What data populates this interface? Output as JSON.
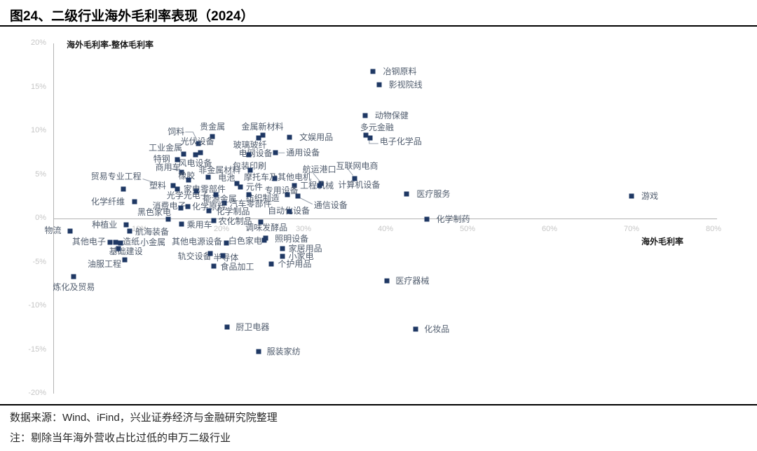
{
  "title": "图24、二级行业海外毛利率表现（2024）",
  "source": "数据来源：Wind、iFind，兴业证券经济与金融研究院整理",
  "note": "注：剔除当年海外营收占比过低的申万二级行业",
  "chart_data": {
    "type": "scatter",
    "title": "海外毛利率-整体毛利率",
    "xlabel": "海外毛利率",
    "ylabel": "海外毛利率-整体毛利率",
    "xlim": [
      0,
      80
    ],
    "ylim": [
      -20,
      20
    ],
    "x_ticks": [
      10,
      20,
      30,
      40,
      50,
      60,
      70,
      80
    ],
    "y_ticks": [
      20,
      15,
      10,
      5,
      0,
      -5,
      -10,
      -15,
      -20
    ],
    "tick_suffix": "%",
    "grid": false,
    "legend": "none",
    "marker_color": "#1F3864",
    "label_color": "#515d6e",
    "tick_color": "#c6c6c6",
    "axis_color": "#b3b3b3",
    "points": [
      {
        "name": "冶钢原料",
        "x": 38.5,
        "y": 16.8,
        "lx": 14,
        "ly": 0,
        "a": "s"
      },
      {
        "name": "影视院线",
        "x": 39.2,
        "y": 15.3,
        "lx": 14,
        "ly": 0,
        "a": "s"
      },
      {
        "name": "动物保健",
        "x": 37.5,
        "y": 11.8,
        "lx": 14,
        "ly": 0,
        "a": "s"
      },
      {
        "name": "多元金融",
        "x": 37.6,
        "y": 9.5,
        "lx": -8,
        "ly": -11,
        "a": "s"
      },
      {
        "name": "电子化学品",
        "x": 38.1,
        "y": 9.2,
        "lx": 14,
        "ly": 5,
        "a": "s",
        "c": [
          -1,
          1,
          -1,
          8,
          12,
          8
        ]
      },
      {
        "name": "贵金属",
        "x": 18.9,
        "y": 9.4,
        "lx": -18,
        "ly": -14,
        "a": "s"
      },
      {
        "name": "金属新材料",
        "x": 25.0,
        "y": 9.5,
        "lx": -30,
        "ly": -12,
        "a": "s"
      },
      {
        "name": "玻璃玻纤",
        "x": 24.5,
        "y": 9.2,
        "lx": -36,
        "ly": 10,
        "a": "s"
      },
      {
        "name": "文娱用品",
        "x": 28.3,
        "y": 9.3,
        "lx": 14,
        "ly": 0,
        "a": "s"
      },
      {
        "name": "饲料",
        "x": 17.2,
        "y": 8.6,
        "lx": -44,
        "ly": -17,
        "a": "s",
        "c": [
          -3,
          -6,
          -8,
          -16,
          -19,
          -16
        ]
      },
      {
        "name": "光伏设备",
        "x": 17.4,
        "y": 7.5,
        "lx": -28,
        "ly": -16,
        "a": "s"
      },
      {
        "name": "工业金属",
        "x": 15.4,
        "y": 7.4,
        "lx": -50,
        "ly": -9,
        "a": "s"
      },
      {
        "name": "特钢",
        "x": 14.6,
        "y": 6.7,
        "lx": -10,
        "ly": -1,
        "a": "e"
      },
      {
        "name": "风电设备",
        "x": 16.8,
        "y": 7.3,
        "lx": -24,
        "ly": 12,
        "a": "s"
      },
      {
        "name": "电网设备",
        "x": 23.3,
        "y": 7.3,
        "lx": -14,
        "ly": -2,
        "a": "s"
      },
      {
        "name": "通用设备",
        "x": 26.6,
        "y": 7.5,
        "lx": 15,
        "ly": 0,
        "a": "s",
        "c": [
          4,
          0,
          13,
          0
        ]
      },
      {
        "name": "包装印刷",
        "x": 23.5,
        "y": 5.5,
        "lx": -25,
        "ly": -6,
        "a": "s"
      },
      {
        "name": "航运港口",
        "x": 32.1,
        "y": 4.0,
        "lx": -26,
        "ly": -20,
        "a": "s",
        "c": [
          -2,
          -4,
          -11,
          -15
        ]
      },
      {
        "name": "互联网电商",
        "x": 36.2,
        "y": 4.6,
        "lx": -26,
        "ly": -18,
        "a": "s",
        "c": [
          -2,
          -4,
          -9,
          -13
        ]
      },
      {
        "name": "工程机械",
        "x": 28.9,
        "y": 3.8,
        "lx": 8,
        "ly": 0,
        "a": "s"
      },
      {
        "name": "计算机设备",
        "x": 32.0,
        "y": 3.8,
        "lx": 26,
        "ly": -1,
        "a": "s"
      },
      {
        "name": "医疗服务",
        "x": 42.6,
        "y": 2.8,
        "lx": 14,
        "ly": 0,
        "a": "s"
      },
      {
        "name": "游戏",
        "x": 70.0,
        "y": 2.6,
        "lx": 14,
        "ly": 0,
        "a": "s"
      },
      {
        "name": "化学制药",
        "x": 45.0,
        "y": -0.1,
        "lx": 14,
        "ly": 0,
        "a": "s"
      },
      {
        "name": "商用车",
        "x": 15.1,
        "y": 5.3,
        "lx": -37,
        "ly": -7,
        "a": "s",
        "c": [
          -4,
          -2,
          -15,
          -5
        ]
      },
      {
        "name": "非金属材料",
        "x": 18.4,
        "y": 4.7,
        "lx": -14,
        "ly": -10,
        "a": "s"
      },
      {
        "name": "橡胶",
        "x": 16.0,
        "y": 4.4,
        "lx": -15,
        "ly": -6,
        "a": "s"
      },
      {
        "name": "电池",
        "x": 21.9,
        "y": 4.0,
        "lx": -27,
        "ly": -8,
        "a": "s"
      },
      {
        "name": "摩托车及其他电机",
        "x": 26.5,
        "y": 4.6,
        "lx": -44,
        "ly": -2,
        "a": "s"
      },
      {
        "name": "贸易专业工程",
        "x": 8.0,
        "y": 3.4,
        "lx": -46,
        "ly": -18,
        "a": "s",
        "c": [
          28,
          -14,
          44,
          -9
        ]
      },
      {
        "name": "塑料",
        "x": 14.1,
        "y": 3.8,
        "lx": -10,
        "ly": 0,
        "a": "e"
      },
      {
        "name": "家电零部件",
        "x": 14.6,
        "y": 3.4,
        "lx": 9,
        "ly": 0,
        "a": "s"
      },
      {
        "name": "光学光电子",
        "x": 16.9,
        "y": 3.1,
        "lx": -42,
        "ly": 6,
        "a": "s"
      },
      {
        "name": "能源金属",
        "x": 19.3,
        "y": 2.7,
        "lx": -18,
        "ly": 6,
        "a": "s"
      },
      {
        "name": "纺织制造",
        "x": 23.3,
        "y": 2.7,
        "lx": -4,
        "ly": 5,
        "a": "s"
      },
      {
        "name": "元件",
        "x": 22.3,
        "y": 3.6,
        "lx": 8,
        "ly": 0,
        "a": "s"
      },
      {
        "name": "专用设备",
        "x": 28.0,
        "y": 2.7,
        "lx": -32,
        "ly": -6,
        "a": "s"
      },
      {
        "name": "通信设备",
        "x": 29.3,
        "y": 2.6,
        "lx": 23,
        "ly": 13,
        "a": "s",
        "c": [
          3,
          3,
          21,
          12
        ]
      },
      {
        "name": "汽车零部件",
        "x": 20.3,
        "y": 1.8,
        "lx": 8,
        "ly": 1,
        "a": "s"
      },
      {
        "name": "消费电子",
        "x": 15.0,
        "y": 1.2,
        "lx": -40,
        "ly": -3,
        "a": "s"
      },
      {
        "name": "化学原料",
        "x": 15.9,
        "y": 1.4,
        "lx": 6,
        "ly": 0,
        "a": "s"
      },
      {
        "name": "化学制品",
        "x": 18.5,
        "y": 0.9,
        "lx": 10,
        "ly": 1,
        "a": "s"
      },
      {
        "name": "自动化设备",
        "x": 28.3,
        "y": 0.8,
        "lx": -31,
        "ly": -1,
        "a": "s"
      },
      {
        "name": "化学纤维",
        "x": 9.4,
        "y": 1.9,
        "lx": -14,
        "ly": 0,
        "a": "e"
      },
      {
        "name": "黑色家电",
        "x": 13.5,
        "y": -0.1,
        "lx": -44,
        "ly": -10,
        "a": "s"
      },
      {
        "name": "物流",
        "x": 1.5,
        "y": -1.4,
        "lx": -12,
        "ly": -1,
        "a": "e"
      },
      {
        "name": "种植业",
        "x": 8.4,
        "y": -0.7,
        "lx": -13,
        "ly": 0,
        "a": "e"
      },
      {
        "name": "航海装备",
        "x": 8.8,
        "y": -1.4,
        "lx": 8,
        "ly": 1,
        "a": "s"
      },
      {
        "name": "乘用车",
        "x": 15.1,
        "y": -0.6,
        "lx": 8,
        "ly": 1,
        "a": "s"
      },
      {
        "name": "农化制品",
        "x": 19.1,
        "y": -0.2,
        "lx": 6,
        "ly": 1,
        "a": "s"
      },
      {
        "name": "调味发酵品",
        "x": 24.8,
        "y": -0.4,
        "lx": -22,
        "ly": 8,
        "a": "s"
      },
      {
        "name": "其他电子",
        "x": 6.4,
        "y": -2.7,
        "lx": -6,
        "ly": -1,
        "a": "e"
      },
      {
        "name": "造纸",
        "x": 7.1,
        "y": -2.7,
        "lx": 10,
        "ly": -1,
        "a": "s"
      },
      {
        "name": "小金属",
        "x": 7.7,
        "y": -2.8,
        "lx": 28,
        "ly": -1,
        "a": "s"
      },
      {
        "name": "其他电源设备",
        "x": 20.6,
        "y": -2.8,
        "lx": -6,
        "ly": -2,
        "a": "e"
      },
      {
        "name": "白色家电",
        "x": 25.2,
        "y": -2.5,
        "lx": -3,
        "ly": 1,
        "a": "e"
      },
      {
        "name": "照明设备",
        "x": 25.4,
        "y": -2.2,
        "lx": 13,
        "ly": 1,
        "a": "s"
      },
      {
        "name": "基础建设",
        "x": 7.4,
        "y": -3.4,
        "lx": -13,
        "ly": 4,
        "a": "s"
      },
      {
        "name": "轨交设备",
        "x": 18.6,
        "y": -4.0,
        "lx": -46,
        "ly": 4,
        "a": "s"
      },
      {
        "name": "半导体",
        "x": 20.2,
        "y": -4.2,
        "lx": -14,
        "ly": 3,
        "a": "s"
      },
      {
        "name": "小家电",
        "x": 27.4,
        "y": -4.3,
        "lx": 9,
        "ly": 0,
        "a": "s"
      },
      {
        "name": "家居用品",
        "x": 27.4,
        "y": -3.4,
        "lx": 9,
        "ly": 0,
        "a": "s"
      },
      {
        "name": "个护用品",
        "x": 26.1,
        "y": -5.2,
        "lx": 9,
        "ly": 0,
        "a": "s"
      },
      {
        "name": "食品加工",
        "x": 19.1,
        "y": -5.4,
        "lx": 9,
        "ly": 1,
        "a": "s"
      },
      {
        "name": "油服工程",
        "x": 8.2,
        "y": -4.7,
        "lx": -53,
        "ly": 6,
        "a": "s"
      },
      {
        "name": "炼化及贸易",
        "x": 2.0,
        "y": -6.6,
        "lx": -30,
        "ly": 15,
        "a": "s"
      },
      {
        "name": "医疗器械",
        "x": 40.2,
        "y": -7.1,
        "lx": 12,
        "ly": 0,
        "a": "s"
      },
      {
        "name": "厨卫电器",
        "x": 20.7,
        "y": -12.4,
        "lx": 12,
        "ly": 0,
        "a": "s"
      },
      {
        "name": "化妆品",
        "x": 43.7,
        "y": -12.6,
        "lx": 12,
        "ly": 0,
        "a": "s"
      },
      {
        "name": "服装家纺",
        "x": 24.5,
        "y": -15.2,
        "lx": 12,
        "ly": 0,
        "a": "s"
      }
    ]
  }
}
